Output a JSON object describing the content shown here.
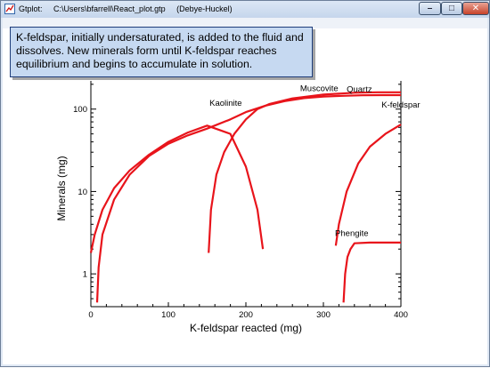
{
  "window": {
    "app_name": "Gtplot:",
    "file_path": "C:\\Users\\bfarrell\\React_plot.gtp",
    "model": "(Debye-Huckel)",
    "min_label": "–",
    "max_label": "□",
    "close_label": "✕",
    "icon": "gtplot-app-icon"
  },
  "tooltip": {
    "text": "K-feldspar, initially undersaturated, is added to the fluid and dissolves. New minerals form until K-feldspar reaches equilibrium and begins to accumulate in solution."
  },
  "chart_data": {
    "type": "line",
    "xlabel": "K-feldspar reacted (mg)",
    "ylabel": "Minerals (mg)",
    "xlim": [
      0,
      400
    ],
    "ylim": [
      0.4,
      220
    ],
    "yscale": "log",
    "x_ticks": [
      0,
      100,
      200,
      300,
      400
    ],
    "y_ticks": [
      1,
      10,
      100
    ],
    "grid": false,
    "line_color": "#e8141b",
    "series": [
      {
        "name": "Kaolinite",
        "points": [
          [
            0,
            1.8
          ],
          [
            5,
            3.0
          ],
          [
            15,
            6
          ],
          [
            30,
            11
          ],
          [
            50,
            18
          ],
          [
            75,
            28
          ],
          [
            100,
            40
          ],
          [
            125,
            52
          ],
          [
            150,
            63
          ],
          [
            180,
            50
          ],
          [
            200,
            20
          ],
          [
            215,
            6
          ],
          [
            222,
            2
          ]
        ]
      },
      {
        "name": "Muscovite",
        "points": [
          [
            8,
            0.45
          ],
          [
            10,
            1.2
          ],
          [
            15,
            3.0
          ],
          [
            30,
            8
          ],
          [
            50,
            16
          ],
          [
            75,
            27
          ],
          [
            100,
            38
          ],
          [
            125,
            48
          ],
          [
            150,
            58
          ],
          [
            180,
            75
          ],
          [
            200,
            92
          ],
          [
            225,
            110
          ],
          [
            250,
            125
          ],
          [
            275,
            136
          ],
          [
            300,
            142
          ],
          [
            325,
            145
          ],
          [
            350,
            147
          ],
          [
            375,
            148
          ],
          [
            400,
            148
          ]
        ]
      },
      {
        "name": "Quartz",
        "points": [
          [
            152,
            1.8
          ],
          [
            155,
            6
          ],
          [
            162,
            16
          ],
          [
            172,
            30
          ],
          [
            185,
            50
          ],
          [
            200,
            75
          ],
          [
            215,
            100
          ],
          [
            230,
            115
          ],
          [
            260,
            135
          ],
          [
            300,
            150
          ],
          [
            340,
            158
          ],
          [
            370,
            160
          ],
          [
            400,
            160
          ]
        ]
      },
      {
        "name": "K-feldspar",
        "points": [
          [
            316,
            2.2
          ],
          [
            320,
            4
          ],
          [
            330,
            10
          ],
          [
            345,
            22
          ],
          [
            360,
            35
          ],
          [
            380,
            50
          ],
          [
            400,
            65
          ]
        ]
      },
      {
        "name": "Phengite",
        "points": [
          [
            326,
            0.45
          ],
          [
            328,
            1.0
          ],
          [
            331,
            1.6
          ],
          [
            335,
            2.0
          ],
          [
            340,
            2.35
          ],
          [
            360,
            2.4
          ],
          [
            400,
            2.4
          ]
        ]
      }
    ]
  }
}
